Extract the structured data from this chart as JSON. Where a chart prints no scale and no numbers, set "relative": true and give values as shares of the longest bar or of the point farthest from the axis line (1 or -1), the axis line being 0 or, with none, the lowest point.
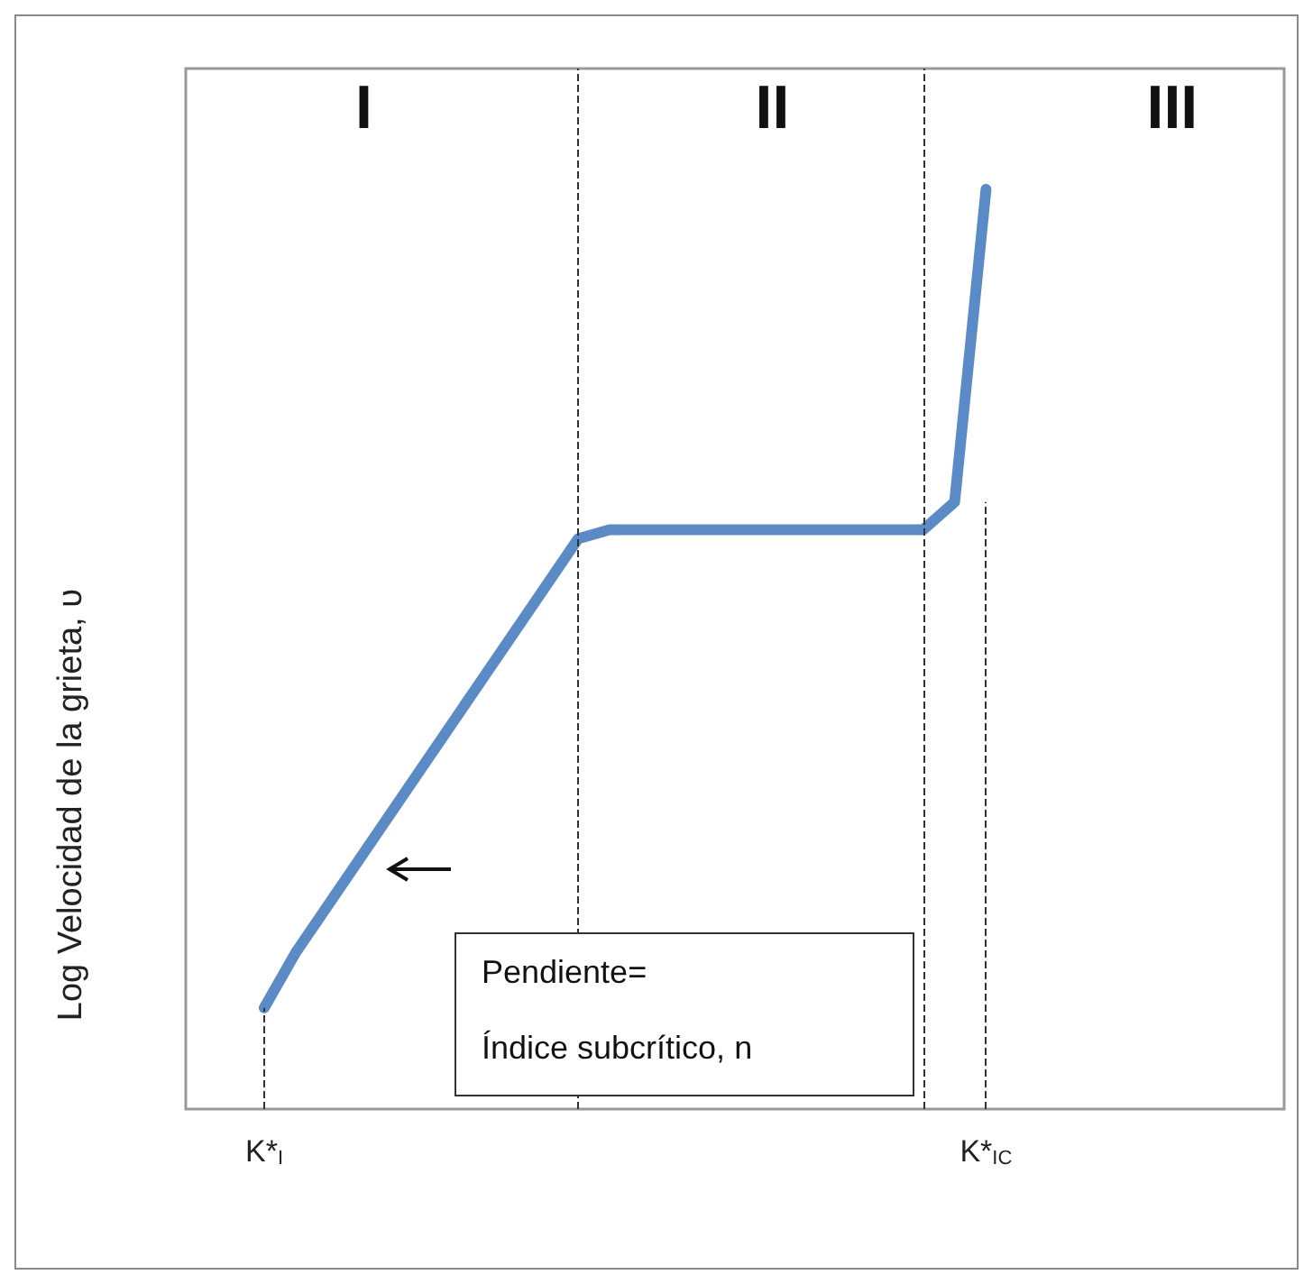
{
  "chart_data": {
    "type": "line",
    "relative": true,
    "ylabel": "Log Velocidad de la grieta, υ",
    "categories": [
      null,
      null,
      "K*$_{I}$",
      null,
      null,
      null,
      null,
      null,
      null,
      null,
      null,
      null,
      null,
      null,
      null,
      null,
      null,
      null,
      null,
      null,
      null,
      null,
      null,
      null,
      null,
      "K*$_{IC}$",
      null,
      null,
      null,
      null,
      null,
      null,
      null,
      null,
      null
    ],
    "series": [
      {
        "color": "#5b8bc7",
        "values": [
          null,
          null,
          0.11,
          0.17,
          0.22,
          0.27,
          0.32,
          0.37,
          0.42,
          0.47,
          0.52,
          0.57,
          0.62,
          0.63,
          0.63,
          0.63,
          0.63,
          0.63,
          0.63,
          0.63,
          0.63,
          0.63,
          0.63,
          0.63,
          0.66,
          1.0,
          null,
          null,
          null,
          null,
          null,
          null,
          null,
          null,
          null
        ]
      }
    ],
    "ref_lines": [
      {
        "axis": "x",
        "value": "K*$_{I}$",
        "line_style": "dashed",
        "color": "#333333"
      },
      {
        "axis": "x",
        "value": "K*$_{IC}$",
        "line_style": "dashed",
        "color": "#333333"
      }
    ],
    "annotations": [
      "I",
      "II",
      "III",
      "Pendiente=\nÍndice subcrítico, n"
    ],
    "marker": "none",
    "line_style": "solid"
  }
}
